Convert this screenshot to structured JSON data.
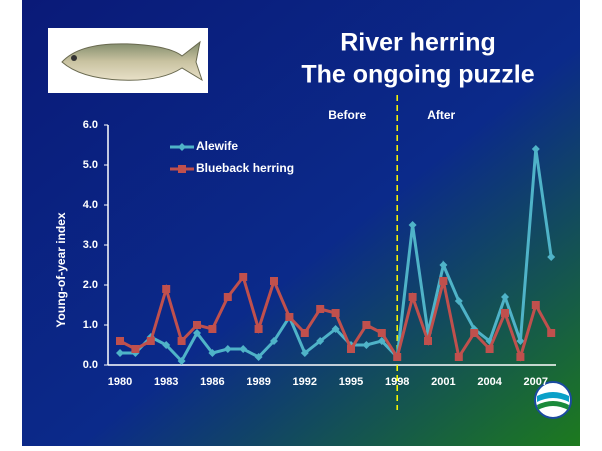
{
  "chart_data": {
    "type": "line",
    "title": "River herring",
    "subtitle": "The ongoing puzzle",
    "y_label": "Young-of-year index",
    "annotations": [
      "Before",
      "After"
    ],
    "categories": [
      "1980",
      null,
      null,
      "1983",
      null,
      null,
      "1986",
      null,
      null,
      "1989",
      null,
      null,
      "1992",
      null,
      null,
      "1995",
      null,
      null,
      "1998",
      null,
      null,
      "2001",
      null,
      null,
      "2004",
      null,
      null,
      "2007",
      null
    ],
    "series": [
      {
        "name": "Alewife",
        "color": "#4fb3c8",
        "marker": "diamond",
        "values": [
          0.3,
          0.3,
          0.7,
          0.5,
          0.1,
          0.8,
          0.3,
          0.4,
          0.4,
          0.2,
          0.6,
          1.2,
          0.3,
          0.6,
          0.9,
          0.5,
          0.5,
          0.6,
          0.2,
          3.5,
          0.8,
          2.5,
          1.6,
          0.9,
          0.6,
          1.7,
          0.6,
          5.4,
          2.7
        ]
      },
      {
        "name": "Blueback herring",
        "color": "#c0504d",
        "marker": "square",
        "values": [
          0.6,
          0.4,
          0.6,
          1.9,
          0.6,
          1.0,
          0.9,
          1.7,
          2.2,
          0.9,
          2.1,
          1.2,
          0.8,
          1.4,
          1.3,
          0.4,
          1.0,
          0.8,
          0.2,
          1.7,
          0.6,
          2.1,
          0.2,
          0.8,
          0.4,
          1.3,
          0.2,
          1.5,
          0.8
        ]
      }
    ],
    "ylim": [
      0,
      6
    ],
    "yticks": [
      {
        "value": 0,
        "label": "0.0"
      },
      {
        "value": 1,
        "label": "1.0"
      },
      {
        "value": 2,
        "label": "2.0"
      },
      {
        "value": 3,
        "label": "3.0"
      },
      {
        "value": 4,
        "label": "4.0"
      },
      {
        "value": 5,
        "label": "5.0"
      },
      {
        "value": 6,
        "label": "6.0"
      }
    ]
  }
}
